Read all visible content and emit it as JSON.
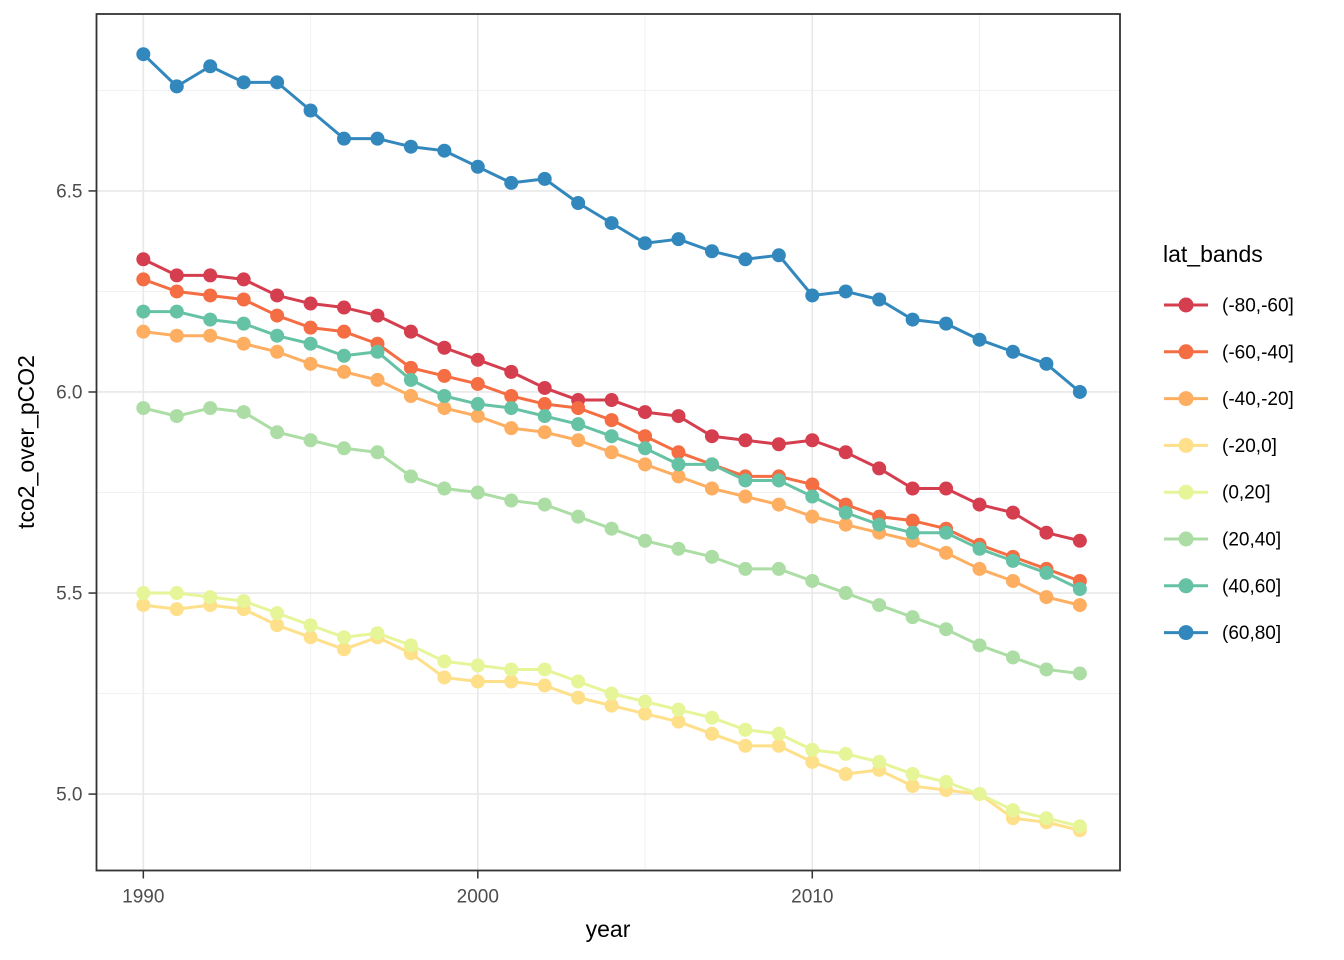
{
  "figure": {
    "background_color": "#ffffff"
  },
  "chart_data": {
    "type": "line",
    "title": "",
    "xlabel": "year",
    "ylabel": "tco2_over_pCO2",
    "legend_title": "lat_bands",
    "legend_position": "right",
    "grid": true,
    "xlim": [
      1988.6,
      2019.2
    ],
    "ylim": [
      4.81,
      6.94
    ],
    "x_ticks": [
      1990,
      2000,
      2010
    ],
    "x_tick_labels": [
      "1990",
      "2000",
      "2010"
    ],
    "x_minor_gridlines": [
      1995,
      2005,
      2015
    ],
    "y_ticks": [
      5.0,
      5.5,
      6.0,
      6.5
    ],
    "y_tick_labels": [
      "5.0",
      "5.5",
      "6.0",
      "6.5"
    ],
    "y_minor_gridlines": [
      5.25,
      5.75,
      6.25,
      6.75
    ],
    "x": [
      1990,
      1991,
      1992,
      1993,
      1994,
      1995,
      1996,
      1997,
      1998,
      1999,
      2000,
      2001,
      2002,
      2003,
      2004,
      2005,
      2006,
      2007,
      2008,
      2009,
      2010,
      2011,
      2012,
      2013,
      2014,
      2015,
      2016,
      2017,
      2018
    ],
    "series": [
      {
        "name": "(-80,-60]",
        "color": "#d53e4f",
        "values": [
          6.33,
          6.29,
          6.29,
          6.28,
          6.24,
          6.22,
          6.21,
          6.19,
          6.15,
          6.11,
          6.08,
          6.05,
          6.01,
          5.98,
          5.98,
          5.95,
          5.94,
          5.89,
          5.88,
          5.87,
          5.88,
          5.85,
          5.81,
          5.76,
          5.76,
          5.72,
          5.7,
          5.65,
          5.63
        ]
      },
      {
        "name": "(-60,-40]",
        "color": "#f46d43",
        "values": [
          6.28,
          6.25,
          6.24,
          6.23,
          6.19,
          6.16,
          6.15,
          6.12,
          6.06,
          6.04,
          6.02,
          5.99,
          5.97,
          5.96,
          5.93,
          5.89,
          5.85,
          5.82,
          5.79,
          5.79,
          5.77,
          5.72,
          5.69,
          5.68,
          5.66,
          5.62,
          5.59,
          5.56,
          5.53
        ]
      },
      {
        "name": "(-40,-20]",
        "color": "#fdae61",
        "values": [
          6.15,
          6.14,
          6.14,
          6.12,
          6.1,
          6.07,
          6.05,
          6.03,
          5.99,
          5.96,
          5.94,
          5.91,
          5.9,
          5.88,
          5.85,
          5.82,
          5.79,
          5.76,
          5.74,
          5.72,
          5.69,
          5.67,
          5.65,
          5.63,
          5.6,
          5.56,
          5.53,
          5.49,
          5.47
        ]
      },
      {
        "name": "(-20,0]",
        "color": "#fee08b",
        "values": [
          5.47,
          5.46,
          5.47,
          5.46,
          5.42,
          5.39,
          5.36,
          5.39,
          5.35,
          5.29,
          5.28,
          5.28,
          5.27,
          5.24,
          5.22,
          5.2,
          5.18,
          5.15,
          5.12,
          5.12,
          5.08,
          5.05,
          5.06,
          5.02,
          5.01,
          5.0,
          4.94,
          4.93,
          4.91
        ]
      },
      {
        "name": "(0,20]",
        "color": "#e6f598",
        "values": [
          5.5,
          5.5,
          5.49,
          5.48,
          5.45,
          5.42,
          5.39,
          5.4,
          5.37,
          5.33,
          5.32,
          5.31,
          5.31,
          5.28,
          5.25,
          5.23,
          5.21,
          5.19,
          5.16,
          5.15,
          5.11,
          5.1,
          5.08,
          5.05,
          5.03,
          5.0,
          4.96,
          4.94,
          4.92
        ]
      },
      {
        "name": "(20,40]",
        "color": "#abdda4",
        "values": [
          5.96,
          5.94,
          5.96,
          5.95,
          5.9,
          5.88,
          5.86,
          5.85,
          5.79,
          5.76,
          5.75,
          5.73,
          5.72,
          5.69,
          5.66,
          5.63,
          5.61,
          5.59,
          5.56,
          5.56,
          5.53,
          5.5,
          5.47,
          5.44,
          5.41,
          5.37,
          5.34,
          5.31,
          5.3
        ]
      },
      {
        "name": "(40,60]",
        "color": "#66c2a5",
        "values": [
          6.2,
          6.2,
          6.18,
          6.17,
          6.14,
          6.12,
          6.09,
          6.1,
          6.03,
          5.99,
          5.97,
          5.96,
          5.94,
          5.92,
          5.89,
          5.86,
          5.82,
          5.82,
          5.78,
          5.78,
          5.74,
          5.7,
          5.67,
          5.65,
          5.65,
          5.61,
          5.58,
          5.55,
          5.51
        ]
      },
      {
        "name": "(60,80]",
        "color": "#3288bd",
        "values": [
          6.84,
          6.76,
          6.81,
          6.77,
          6.77,
          6.7,
          6.63,
          6.63,
          6.61,
          6.6,
          6.56,
          6.52,
          6.53,
          6.47,
          6.42,
          6.37,
          6.38,
          6.35,
          6.33,
          6.34,
          6.24,
          6.25,
          6.23,
          6.18,
          6.17,
          6.13,
          6.1,
          6.07,
          6.0
        ]
      }
    ],
    "styles": {
      "panel_background": "#ffffff",
      "panel_border_color": "#333333",
      "major_grid_color": "#e8e8e8",
      "minor_grid_color": "#f1f1f1",
      "tick_mark_color": "#333333",
      "tick_label_color": "#4d4d4d",
      "line_width": 3,
      "point_radius": 7
    }
  }
}
